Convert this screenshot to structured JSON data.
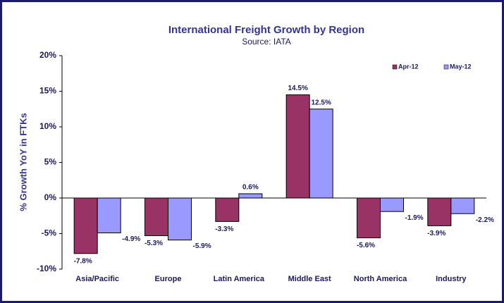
{
  "chart_data": {
    "type": "bar",
    "title": "International Freight Growth by Region",
    "subtitle": "Source: IATA",
    "y_label": "% Growth YoY in FTKs",
    "categories": [
      "Asia/Pacific",
      "Europe",
      "Latin America",
      "Middle East",
      "North America",
      "Industry"
    ],
    "series": [
      {
        "name": "Apr-12",
        "color": "#993366",
        "values": [
          -7.8,
          -5.3,
          -3.3,
          14.5,
          -5.6,
          -3.9
        ],
        "value_labels": [
          "-7.8%",
          "-5.3%",
          "-3.3%",
          "14.5%",
          "-5.6%",
          "-3.9%"
        ]
      },
      {
        "name": "May-12",
        "color": "#9999ff",
        "values": [
          -4.9,
          -5.9,
          0.6,
          12.5,
          -1.9,
          -2.2
        ],
        "value_labels": [
          "-4.9%",
          "-5.9%",
          "0.6%",
          "12.5%",
          "-1.9%",
          "-2.2%"
        ]
      }
    ],
    "ylim": [
      -10,
      20
    ],
    "yticks": [
      {
        "value": -10,
        "label": "-10%"
      },
      {
        "value": -5,
        "label": "-5%"
      },
      {
        "value": 0,
        "label": "0%"
      },
      {
        "value": 5,
        "label": "5%"
      },
      {
        "value": 10,
        "label": "10%"
      },
      {
        "value": 15,
        "label": "15%"
      },
      {
        "value": 20,
        "label": "20%"
      }
    ],
    "legend": "top-right"
  }
}
